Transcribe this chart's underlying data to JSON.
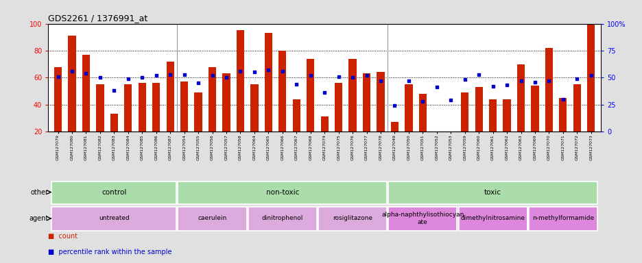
{
  "title": "GDS2261 / 1376991_at",
  "samples": [
    "GSM127079",
    "GSM127080",
    "GSM127081",
    "GSM127082",
    "GSM127083",
    "GSM127084",
    "GSM127085",
    "GSM127086",
    "GSM127087",
    "GSM127054",
    "GSM127055",
    "GSM127056",
    "GSM127057",
    "GSM127058",
    "GSM127064",
    "GSM127065",
    "GSM127066",
    "GSM127067",
    "GSM127068",
    "GSM127074",
    "GSM127075",
    "GSM127076",
    "GSM127077",
    "GSM127078",
    "GSM127049",
    "GSM127050",
    "GSM127051",
    "GSM127052",
    "GSM127053",
    "GSM127059",
    "GSM127060",
    "GSM127061",
    "GSM127062",
    "GSM127063",
    "GSM127069",
    "GSM127070",
    "GSM127071",
    "GSM127072",
    "GSM127073"
  ],
  "count_values": [
    68,
    91,
    77,
    55,
    33,
    55,
    56,
    56,
    72,
    57,
    49,
    68,
    63,
    95,
    55,
    93,
    80,
    44,
    74,
    31,
    56,
    74,
    63,
    64,
    27,
    55,
    48,
    19,
    20,
    49,
    53,
    44,
    44,
    70,
    54,
    82,
    45,
    55,
    100
  ],
  "percentile_values": [
    51,
    56,
    54,
    50,
    38,
    49,
    50,
    52,
    53,
    53,
    45,
    52,
    50,
    56,
    55,
    57,
    56,
    44,
    52,
    36,
    51,
    50,
    52,
    47,
    24,
    47,
    28,
    41,
    29,
    48,
    53,
    42,
    43,
    47,
    46,
    47,
    30,
    49,
    52
  ],
  "other_groups": [
    {
      "label": "control",
      "start": 0,
      "end": 8,
      "color": "#aaddaa"
    },
    {
      "label": "non-toxic",
      "start": 9,
      "end": 23,
      "color": "#aaddaa"
    },
    {
      "label": "toxic",
      "start": 24,
      "end": 38,
      "color": "#aaddaa"
    }
  ],
  "agent_groups": [
    {
      "label": "untreated",
      "start": 0,
      "end": 8,
      "color": "#ddaadd"
    },
    {
      "label": "caerulein",
      "start": 9,
      "end": 13,
      "color": "#ddaadd"
    },
    {
      "label": "dinitrophenol",
      "start": 14,
      "end": 18,
      "color": "#ddaadd"
    },
    {
      "label": "rosiglitazone",
      "start": 19,
      "end": 23,
      "color": "#ddaadd"
    },
    {
      "label": "alpha-naphthylisothiocyan\nate",
      "start": 24,
      "end": 28,
      "color": "#dd88dd"
    },
    {
      "label": "dimethylnitrosamine",
      "start": 29,
      "end": 33,
      "color": "#dd88dd"
    },
    {
      "label": "n-methylformamide",
      "start": 34,
      "end": 38,
      "color": "#dd88dd"
    }
  ],
  "bar_color": "#cc2200",
  "dot_color": "#0000cc",
  "ylim_left": [
    20,
    100
  ],
  "left_ticks": [
    20,
    40,
    60,
    80,
    100
  ],
  "right_ticks": [
    0,
    25,
    50,
    75,
    100
  ],
  "right_tick_labels": [
    "0",
    "25",
    "50",
    "75",
    "100%"
  ],
  "bar_width": 0.55,
  "background_color": "#e0e0e0",
  "plot_bg": "#ffffff",
  "group_separators": [
    8.5,
    23.5
  ],
  "legend_count_label": "count",
  "legend_pct_label": "percentile rank within the sample"
}
